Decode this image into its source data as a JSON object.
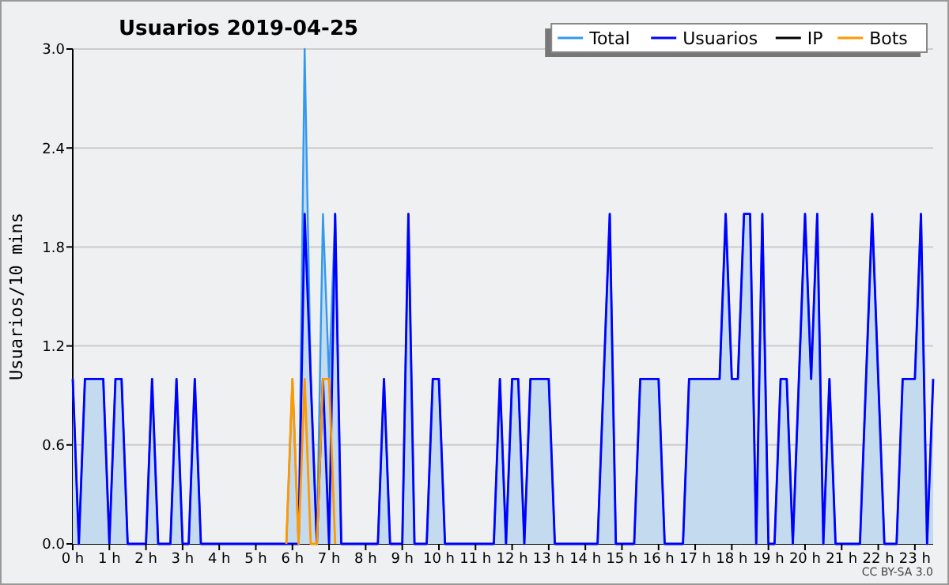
{
  "chart_data": {
    "type": "line",
    "title": "Usuarios  2019-04-25",
    "ylabel": "Usuarios/10 mins",
    "annotations": [
      "CC BY-SA 3.0"
    ],
    "x": [
      0,
      0.1667,
      0.3333,
      0.5,
      0.6667,
      0.8333,
      1,
      1.1667,
      1.3333,
      1.5,
      1.6667,
      1.8333,
      2,
      2.1667,
      2.3333,
      2.5,
      2.6667,
      2.8333,
      3,
      3.1667,
      3.3333,
      3.5,
      3.6667,
      3.8333,
      4,
      4.1667,
      4.3333,
      4.5,
      4.6667,
      4.8333,
      5,
      5.1667,
      5.3333,
      5.5,
      5.6667,
      5.8333,
      6,
      6.1667,
      6.3333,
      6.5,
      6.6667,
      6.8333,
      7,
      7.1667,
      7.3333,
      7.5,
      7.6667,
      7.8333,
      8,
      8.1667,
      8.3333,
      8.5,
      8.6667,
      8.8333,
      9,
      9.1667,
      9.3333,
      9.5,
      9.6667,
      9.8333,
      10,
      10.1667,
      10.3333,
      10.5,
      10.6667,
      10.8333,
      11,
      11.1667,
      11.3333,
      11.5,
      11.6667,
      11.8333,
      12,
      12.1667,
      12.3333,
      12.5,
      12.6667,
      12.8333,
      13,
      13.1667,
      13.3333,
      13.5,
      13.6667,
      13.8333,
      14,
      14.1667,
      14.3333,
      14.5,
      14.6667,
      14.8333,
      15,
      15.1667,
      15.3333,
      15.5,
      15.6667,
      15.8333,
      16,
      16.1667,
      16.3333,
      16.5,
      16.6667,
      16.8333,
      17,
      17.1667,
      17.3333,
      17.5,
      17.6667,
      17.8333,
      18,
      18.1667,
      18.3333,
      18.5,
      18.6667,
      18.8333,
      19,
      19.1667,
      19.3333,
      19.5,
      19.6667,
      19.8333,
      20,
      20.1667,
      20.3333,
      20.5,
      20.6667,
      20.8333,
      21,
      21.1667,
      21.3333,
      21.5,
      21.6667,
      21.8333,
      22,
      22.1667,
      22.3333,
      22.5,
      22.6667,
      22.8333,
      23,
      23.1667,
      23.3333,
      23.5
    ],
    "xlim": [
      0,
      23.5
    ],
    "xticks": [
      {
        "value": 0,
        "label": "0 h"
      },
      {
        "value": 1,
        "label": "1 h"
      },
      {
        "value": 2,
        "label": "2 h"
      },
      {
        "value": 3,
        "label": "3 h"
      },
      {
        "value": 4,
        "label": "4 h"
      },
      {
        "value": 5,
        "label": "5 h"
      },
      {
        "value": 6,
        "label": "6 h"
      },
      {
        "value": 7,
        "label": "7 h"
      },
      {
        "value": 8,
        "label": "8 h"
      },
      {
        "value": 9,
        "label": "9 h"
      },
      {
        "value": 10,
        "label": "10 h"
      },
      {
        "value": 11,
        "label": "11 h"
      },
      {
        "value": 12,
        "label": "12 h"
      },
      {
        "value": 13,
        "label": "13 h"
      },
      {
        "value": 14,
        "label": "14 h"
      },
      {
        "value": 15,
        "label": "15 h"
      },
      {
        "value": 16,
        "label": "16 h"
      },
      {
        "value": 17,
        "label": "17 h"
      },
      {
        "value": 18,
        "label": "18 h"
      },
      {
        "value": 19,
        "label": "19 h"
      },
      {
        "value": 20,
        "label": "20 h"
      },
      {
        "value": 21,
        "label": "21 h"
      },
      {
        "value": 22,
        "label": "22 h"
      },
      {
        "value": 23,
        "label": "23 h"
      }
    ],
    "ylim": [
      0,
      3
    ],
    "yticks": [
      {
        "value": 0,
        "label": "0.0"
      },
      0.6,
      1.2,
      1.8,
      2.4,
      {
        "value": 3,
        "label": "3.0"
      }
    ],
    "grid": "y",
    "legend": "top right",
    "marker": "none",
    "line_style": "solid",
    "series": [
      {
        "name": "Total",
        "type": "area",
        "color": "#3399ee",
        "values": [
          1,
          0,
          1,
          1,
          1,
          1,
          0,
          1,
          1,
          0,
          0,
          0,
          0,
          1,
          0,
          0,
          0,
          1,
          0,
          0,
          1,
          0,
          0,
          0,
          0,
          0,
          0,
          0,
          0,
          0,
          0,
          0,
          0,
          0,
          0,
          0,
          1,
          0,
          3,
          1,
          0,
          2,
          1,
          2,
          0,
          0,
          0,
          0,
          0,
          0,
          0,
          1,
          0,
          0,
          0,
          2,
          0,
          0,
          0,
          1,
          1,
          0,
          0,
          0,
          0,
          0,
          0,
          0,
          0,
          0,
          1,
          0,
          1,
          1,
          0,
          1,
          1,
          1,
          1,
          0,
          0,
          0,
          0,
          0,
          0,
          0,
          0,
          1,
          2,
          0,
          0,
          0,
          0,
          1,
          1,
          1,
          1,
          0,
          0,
          0,
          0,
          1,
          1,
          1,
          1,
          1,
          1,
          2,
          1,
          1,
          2,
          2,
          0,
          2,
          0,
          0,
          1,
          1,
          0,
          1,
          2,
          1,
          2,
          0,
          1,
          0,
          0,
          0,
          0,
          0,
          1,
          2,
          1,
          0,
          0,
          0,
          1,
          1,
          1,
          2,
          0,
          1
        ]
      },
      {
        "name": "Usuarios",
        "color": "#0000ff",
        "values": [
          1,
          0,
          1,
          1,
          1,
          1,
          0,
          1,
          1,
          0,
          0,
          0,
          0,
          1,
          0,
          0,
          0,
          1,
          0,
          0,
          1,
          0,
          0,
          0,
          0,
          0,
          0,
          0,
          0,
          0,
          0,
          0,
          0,
          0,
          0,
          0,
          0,
          0,
          2,
          1,
          0,
          1,
          0,
          2,
          0,
          0,
          0,
          0,
          0,
          0,
          0,
          1,
          0,
          0,
          0,
          2,
          0,
          0,
          0,
          1,
          1,
          0,
          0,
          0,
          0,
          0,
          0,
          0,
          0,
          0,
          1,
          0,
          1,
          1,
          0,
          1,
          1,
          1,
          1,
          0,
          0,
          0,
          0,
          0,
          0,
          0,
          0,
          1,
          2,
          0,
          0,
          0,
          0,
          1,
          1,
          1,
          1,
          0,
          0,
          0,
          0,
          1,
          1,
          1,
          1,
          1,
          1,
          2,
          1,
          1,
          2,
          2,
          0,
          2,
          0,
          0,
          1,
          1,
          0,
          1,
          2,
          1,
          2,
          0,
          1,
          0,
          0,
          0,
          0,
          0,
          1,
          2,
          1,
          0,
          0,
          0,
          1,
          1,
          1,
          2,
          0,
          1
        ]
      },
      {
        "name": "IP",
        "color": "#000000",
        "values": [
          null,
          null,
          null,
          null,
          null,
          null,
          null,
          null,
          null,
          null,
          null,
          null,
          null,
          null,
          null,
          null,
          null,
          null,
          null,
          null,
          null,
          null,
          null,
          null,
          null,
          null,
          null,
          null,
          null,
          null,
          null,
          null,
          null,
          null,
          null,
          null,
          null,
          null,
          null,
          null,
          null,
          null,
          null,
          null,
          null,
          null,
          null,
          null,
          null,
          null,
          null,
          null,
          null,
          null,
          null,
          null,
          null,
          null,
          null,
          null,
          null,
          null,
          null,
          null,
          null,
          null,
          null,
          null,
          null,
          null,
          null,
          null,
          null,
          null,
          null,
          null,
          null,
          null,
          null,
          null,
          null,
          null,
          null,
          null,
          null,
          null,
          null,
          null,
          null,
          null,
          null,
          null,
          null,
          null,
          null,
          null,
          null,
          null,
          null,
          null,
          null,
          null,
          null,
          null,
          null,
          null,
          null,
          null,
          null,
          null,
          null,
          null,
          null,
          null,
          null,
          null,
          null,
          null,
          null,
          null,
          null,
          null,
          null,
          null,
          null,
          null,
          null,
          null,
          null,
          null,
          null,
          null,
          null,
          null,
          null,
          null,
          null,
          null,
          null,
          null,
          null,
          null
        ]
      },
      {
        "name": "Bots",
        "color": "#ff9900",
        "values": [
          null,
          null,
          null,
          null,
          null,
          null,
          null,
          null,
          null,
          null,
          null,
          null,
          null,
          null,
          null,
          null,
          null,
          null,
          null,
          null,
          null,
          null,
          null,
          null,
          null,
          null,
          null,
          null,
          null,
          null,
          null,
          null,
          null,
          null,
          null,
          0,
          1,
          0,
          1,
          0,
          0,
          1,
          1,
          0,
          null,
          null,
          null,
          null,
          null,
          null,
          null,
          null,
          null,
          null,
          null,
          null,
          null,
          null,
          null,
          null,
          null,
          null,
          null,
          null,
          null,
          null,
          null,
          null,
          null,
          null,
          null,
          null,
          null,
          null,
          null,
          null,
          null,
          null,
          null,
          null,
          null,
          null,
          null,
          null,
          null,
          null,
          null,
          null,
          null,
          null,
          null,
          null,
          null,
          null,
          null,
          null,
          null,
          null,
          null,
          null,
          null,
          null,
          null,
          null,
          null,
          null,
          null,
          null,
          null,
          null,
          null,
          null,
          null,
          null,
          null,
          null,
          null,
          null,
          null,
          null,
          null,
          null,
          null,
          null,
          null,
          null,
          null,
          null,
          null,
          null,
          null,
          null,
          null,
          null,
          null,
          null,
          null,
          null,
          null,
          null,
          null,
          null
        ]
      }
    ]
  }
}
